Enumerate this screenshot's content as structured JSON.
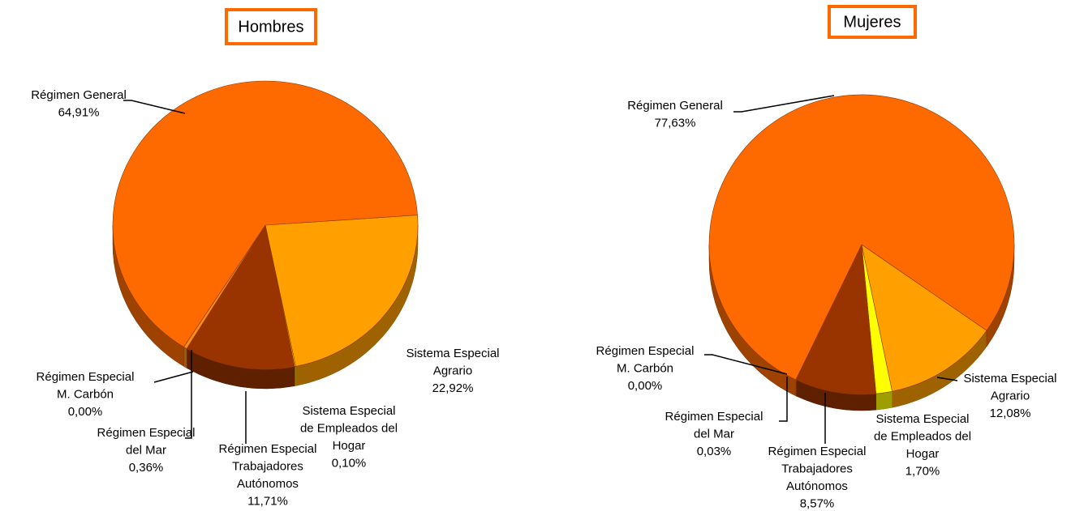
{
  "chart_data": [
    {
      "type": "pie",
      "title": "Hombres",
      "categories": [
        [
          "Sistema Especial",
          "Agrario"
        ],
        [
          "Sistema Especial",
          "de Empleados del",
          "Hogar"
        ],
        [
          "Régimen Especial",
          "Trabajadores",
          "Autónomos"
        ],
        [
          "Régimen Especial",
          "del Mar"
        ],
        [
          "Régimen Especial",
          "M. Carbón"
        ],
        [
          "Régimen General"
        ]
      ],
      "values": [
        22.92,
        0.1,
        11.71,
        0.36,
        0.0,
        64.91
      ],
      "value_labels": [
        "22,92%",
        "0,10%",
        "11,71%",
        "0,36%",
        "0,00%",
        "64,91%"
      ],
      "colors": [
        "#ffa000",
        "#ffff00",
        "#993300",
        "#ff8c1a",
        "#cc5500",
        "#ff6a00"
      ]
    },
    {
      "type": "pie",
      "title": "Mujeres",
      "categories": [
        [
          "Sistema Especial",
          "Agrario"
        ],
        [
          "Sistema Especial",
          "de Empleados del",
          "Hogar"
        ],
        [
          "Régimen Especial",
          "Trabajadores",
          "Autónomos"
        ],
        [
          "Régimen Especial",
          "del Mar"
        ],
        [
          "Régimen Especial",
          "M. Carbón"
        ],
        [
          "Régimen General"
        ]
      ],
      "values": [
        12.08,
        1.7,
        8.57,
        0.03,
        0.0,
        77.63
      ],
      "value_labels": [
        "12,08%",
        "1,70%",
        "8,57%",
        "0,03%",
        "0,00%",
        "77,63%"
      ],
      "colors": [
        "#ffa000",
        "#ffff00",
        "#993300",
        "#ff8c1a",
        "#cc5500",
        "#ff6a00"
      ]
    }
  ]
}
